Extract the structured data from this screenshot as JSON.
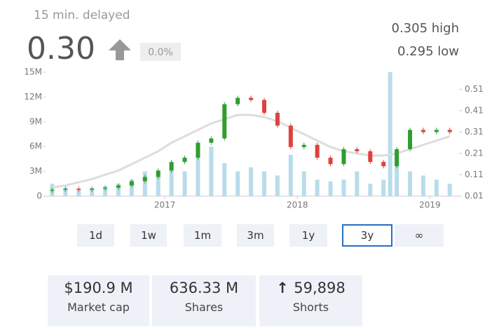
{
  "header": {
    "delay": "15 min. delayed",
    "price": "0.30",
    "change": "0.0%",
    "high": "0.305 high",
    "low": "0.295 low"
  },
  "chart_data": {
    "type": "candlestick",
    "x": [
      2016.15,
      2016.25,
      2016.35,
      2016.45,
      2016.55,
      2016.65,
      2016.75,
      2016.85,
      2016.95,
      2017.05,
      2017.15,
      2017.25,
      2017.35,
      2017.45,
      2017.55,
      2017.65,
      2017.75,
      2017.85,
      2017.95,
      2018.05,
      2018.15,
      2018.25,
      2018.35,
      2018.45,
      2018.55,
      2018.65,
      2018.75,
      2018.85,
      2018.95,
      2019.05,
      2019.15
    ],
    "open": [
      0.035,
      0.04,
      0.045,
      0.04,
      0.045,
      0.05,
      0.06,
      0.08,
      0.1,
      0.13,
      0.17,
      0.19,
      0.26,
      0.28,
      0.44,
      0.47,
      0.46,
      0.4,
      0.34,
      0.24,
      0.25,
      0.19,
      0.16,
      0.23,
      0.22,
      0.17,
      0.15,
      0.23,
      0.32,
      0.31,
      0.32
    ],
    "high": [
      0.05,
      0.055,
      0.055,
      0.055,
      0.06,
      0.07,
      0.09,
      0.11,
      0.14,
      0.18,
      0.2,
      0.27,
      0.29,
      0.45,
      0.48,
      0.48,
      0.47,
      0.41,
      0.35,
      0.26,
      0.26,
      0.2,
      0.24,
      0.24,
      0.23,
      0.18,
      0.24,
      0.33,
      0.33,
      0.33,
      0.33
    ],
    "low": [
      0.025,
      0.03,
      0.03,
      0.03,
      0.035,
      0.04,
      0.05,
      0.07,
      0.09,
      0.12,
      0.16,
      0.18,
      0.25,
      0.27,
      0.43,
      0.45,
      0.39,
      0.33,
      0.23,
      0.23,
      0.18,
      0.15,
      0.15,
      0.21,
      0.16,
      0.14,
      0.14,
      0.22,
      0.3,
      0.3,
      0.3
    ],
    "close": [
      0.04,
      0.045,
      0.04,
      0.045,
      0.05,
      0.06,
      0.08,
      0.1,
      0.13,
      0.17,
      0.19,
      0.26,
      0.28,
      0.44,
      0.47,
      0.46,
      0.4,
      0.34,
      0.24,
      0.25,
      0.19,
      0.16,
      0.23,
      0.22,
      0.17,
      0.15,
      0.23,
      0.32,
      0.31,
      0.32,
      0.31
    ],
    "up_color": "#2e9e2e",
    "down_color": "#e04040",
    "ma": {
      "color": "#dddddd",
      "values": [
        0.05,
        0.06,
        0.075,
        0.09,
        0.11,
        0.13,
        0.16,
        0.19,
        0.22,
        0.26,
        0.29,
        0.32,
        0.35,
        0.37,
        0.39,
        0.39,
        0.38,
        0.36,
        0.33,
        0.3,
        0.27,
        0.24,
        0.22,
        0.21,
        0.2,
        0.2,
        0.21,
        0.23,
        0.25,
        0.27,
        0.29
      ]
    },
    "volume": {
      "color": "#b9dcea",
      "x": [
        2016.15,
        2016.25,
        2016.35,
        2016.45,
        2016.55,
        2016.65,
        2016.75,
        2016.85,
        2016.95,
        2017.05,
        2017.15,
        2017.25,
        2017.35,
        2017.45,
        2017.55,
        2017.65,
        2017.75,
        2017.85,
        2017.95,
        2018.05,
        2018.15,
        2018.25,
        2018.35,
        2018.45,
        2018.55,
        2018.65,
        2018.7,
        2018.75,
        2018.85,
        2018.95,
        2019.05,
        2019.15
      ],
      "values": [
        1500000,
        1000000,
        800000,
        1000000,
        1200000,
        1500000,
        2000000,
        3000000,
        2500000,
        4000000,
        3000000,
        5000000,
        6000000,
        4000000,
        3000000,
        3500000,
        3000000,
        2500000,
        5000000,
        3000000,
        2000000,
        1800000,
        2000000,
        3000000,
        1500000,
        2000000,
        15000000,
        5000000,
        3000000,
        2500000,
        2000000,
        1500000
      ]
    },
    "xlim": [
      2016.1,
      2019.22
    ],
    "xticks": [
      2017,
      2018,
      2019
    ],
    "ylim": [
      0,
      15000000
    ],
    "yticks": [
      0,
      {
        "value": 3000000,
        "label": "3M"
      },
      {
        "value": 6000000,
        "label": "6M"
      },
      {
        "value": 9000000,
        "label": "9M"
      },
      {
        "value": 12000000,
        "label": "12M"
      },
      {
        "value": 15000000,
        "label": "15M"
      }
    ],
    "y2lim": [
      0.01,
      0.59
    ],
    "y2ticks": [
      0.01,
      0.11,
      0.21,
      0.31,
      0.41,
      0.51
    ]
  },
  "ranges": {
    "buttons": [
      "1d",
      "1w",
      "1m",
      "3m",
      "1y",
      "3y",
      "∞"
    ],
    "selected": "3y"
  },
  "stats": [
    {
      "value": "$190.9 M",
      "label": "Market cap"
    },
    {
      "value": "636.33 M",
      "label": "Shares"
    },
    {
      "value": "59,898",
      "label": "Shorts"
    }
  ]
}
